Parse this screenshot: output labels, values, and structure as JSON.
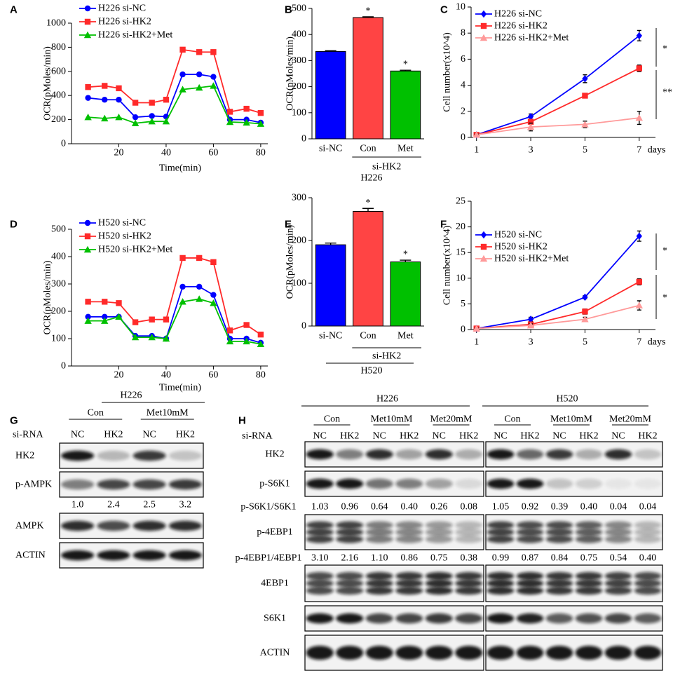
{
  "chart_data": [
    {
      "type": "line",
      "label": "A",
      "ylabel": "OCR(pMoles/min)",
      "xlabel": "Time(min)",
      "x": [
        7,
        14,
        20,
        27,
        34,
        40,
        47,
        54,
        60,
        67,
        74,
        80
      ],
      "xlim": [
        0,
        83
      ],
      "xticks": [
        20,
        40,
        60,
        80
      ],
      "ylim": [
        0,
        1000
      ],
      "yticks": [
        0,
        200,
        400,
        600,
        800,
        1000
      ],
      "legend": "upper left",
      "series": [
        {
          "name": "H226  si-NC",
          "color": "#0000ff",
          "marker": "circle",
          "values": [
            380,
            365,
            365,
            220,
            230,
            225,
            575,
            575,
            555,
            200,
            200,
            175
          ]
        },
        {
          "name": "H226  si-HK2",
          "color": "#ff2a2a",
          "marker": "square",
          "values": [
            470,
            480,
            460,
            340,
            340,
            365,
            780,
            760,
            760,
            265,
            290,
            255
          ]
        },
        {
          "name": "H226  si-HK2+Met",
          "color": "#00c000",
          "marker": "triangle",
          "values": [
            220,
            210,
            220,
            170,
            185,
            185,
            450,
            465,
            480,
            180,
            175,
            165
          ]
        }
      ]
    },
    {
      "type": "bar",
      "label": "B",
      "ylabel": "OCR(pMoles/min)",
      "categories": [
        "si-NC",
        "Con",
        "Met"
      ],
      "values": [
        335,
        465,
        260
      ],
      "errors": [
        3,
        3,
        3
      ],
      "colors": [
        "#0000ff",
        "#ff4444",
        "#00c000"
      ],
      "ylim": [
        0,
        500
      ],
      "yticks": [
        0,
        100,
        200,
        300,
        400,
        500
      ],
      "annotations": [
        "*",
        "*"
      ],
      "group_label": "si-HK2",
      "cell_line": "H226"
    },
    {
      "type": "line",
      "label": "C",
      "ylabel": "Cell number(x10^4)",
      "xlabel": "days",
      "x": [
        1,
        3,
        5,
        7
      ],
      "xlim": [
        0.8,
        7.6
      ],
      "xticks": [
        1,
        3,
        5,
        7
      ],
      "ylim": [
        0,
        10
      ],
      "yticks": [
        0,
        2,
        4,
        6,
        8,
        10
      ],
      "legend": "upper left",
      "annotations": [
        "*",
        "**"
      ],
      "series": [
        {
          "name": "H226  si-NC",
          "color": "#0000ff",
          "marker": "diamond",
          "values": [
            0.2,
            1.6,
            4.5,
            7.8
          ],
          "errors": [
            0.05,
            0.2,
            0.3,
            0.4
          ]
        },
        {
          "name": "H226  si-HK2",
          "color": "#ff2a2a",
          "marker": "square",
          "values": [
            0.2,
            1.2,
            3.2,
            5.3
          ],
          "errors": [
            0.05,
            0.15,
            0.15,
            0.25
          ]
        },
        {
          "name": "H226  si-HK2+Met",
          "color": "#ff9a9a",
          "marker": "triangle",
          "values": [
            0.2,
            0.8,
            1.0,
            1.5
          ],
          "errors": [
            0.05,
            0.3,
            0.25,
            0.5
          ]
        }
      ]
    },
    {
      "type": "line",
      "label": "D",
      "ylabel": "OCR(pMoles/min)",
      "xlabel": "Time(min)",
      "x": [
        7,
        14,
        20,
        27,
        34,
        40,
        47,
        54,
        60,
        67,
        74,
        80
      ],
      "xlim": [
        0,
        83
      ],
      "xticks": [
        20,
        40,
        60,
        80
      ],
      "ylim": [
        0,
        500
      ],
      "yticks": [
        0,
        100,
        200,
        300,
        400,
        500
      ],
      "legend": "upper left",
      "series": [
        {
          "name": "H520  si-NC",
          "color": "#0000ff",
          "marker": "circle",
          "values": [
            180,
            180,
            180,
            110,
            110,
            100,
            290,
            290,
            260,
            100,
            100,
            85
          ]
        },
        {
          "name": "H520  si-HK2",
          "color": "#ff2a2a",
          "marker": "square",
          "values": [
            235,
            235,
            230,
            160,
            170,
            170,
            395,
            395,
            380,
            130,
            150,
            115
          ]
        },
        {
          "name": "H520  si-HK2+Met",
          "color": "#00c000",
          "marker": "triangle",
          "values": [
            165,
            165,
            180,
            105,
            105,
            100,
            235,
            245,
            230,
            90,
            90,
            80
          ]
        }
      ]
    },
    {
      "type": "bar",
      "label": "E",
      "ylabel": "OCR(pMoles/min)",
      "categories": [
        "si-NC",
        "Con",
        "Met"
      ],
      "values": [
        190,
        268,
        150
      ],
      "errors": [
        4,
        7,
        4
      ],
      "colors": [
        "#0000ff",
        "#ff4444",
        "#00c000"
      ],
      "ylim": [
        0,
        300
      ],
      "yticks": [
        0,
        100,
        200,
        300
      ],
      "annotations": [
        "*",
        "*"
      ],
      "group_label": "si-HK2",
      "cell_line": "H520"
    },
    {
      "type": "line",
      "label": "F",
      "ylabel": "Cell number(x10^4)",
      "xlabel": "days",
      "x": [
        1,
        3,
        5,
        7
      ],
      "xlim": [
        0.8,
        7.6
      ],
      "xticks": [
        1,
        3,
        5,
        7
      ],
      "ylim": [
        0,
        25
      ],
      "yticks": [
        0,
        5,
        10,
        15,
        20,
        25
      ],
      "legend": "upper left",
      "annotations": [
        "*",
        "*"
      ],
      "series": [
        {
          "name": "H520  si-NC",
          "color": "#0000ff",
          "marker": "diamond",
          "values": [
            0.2,
            2.0,
            6.3,
            18.2
          ],
          "errors": [
            0.1,
            0.4,
            0.3,
            1.0
          ]
        },
        {
          "name": "H520  si-HK2",
          "color": "#ff2a2a",
          "marker": "square",
          "values": [
            0.2,
            1.0,
            3.5,
            9.3
          ],
          "errors": [
            0.1,
            0.3,
            0.5,
            0.6
          ]
        },
        {
          "name": "H520  si-HK2+Met",
          "color": "#ff9a9a",
          "marker": "triangle",
          "values": [
            0.2,
            0.8,
            2.0,
            4.7
          ],
          "errors": [
            0.1,
            0.3,
            0.4,
            0.9
          ]
        }
      ]
    }
  ],
  "blots": {
    "G": {
      "label": "G",
      "cell_line": "H226",
      "conditions": [
        "Con",
        "Met10mM"
      ],
      "si_rna_label": "si-RNA",
      "lanes": [
        "NC",
        "HK2",
        "NC",
        "HK2"
      ],
      "rows": [
        "HK2",
        "p-AMPK",
        "AMPK",
        "ACTIN"
      ],
      "ratios": [
        "1.0",
        "2.4",
        "2.5",
        "3.2"
      ]
    },
    "H": {
      "label": "H",
      "cell_lines": [
        "H226",
        "H520"
      ],
      "conditions": [
        "Con",
        "Met10mM",
        "Met20mM"
      ],
      "si_rna_label": "si-RNA",
      "lanes": [
        "NC",
        "HK2",
        "NC",
        "HK2",
        "NC",
        "HK2"
      ],
      "rows": [
        "HK2",
        "p-S6K1",
        "p-4EBP1",
        "4EBP1",
        "S6K1",
        "ACTIN"
      ],
      "ratios": [
        {
          "label": "p-S6K1/S6K1",
          "values": [
            [
              "1.03",
              "0.96",
              "0.64",
              "0.40",
              "0.26",
              "0.08"
            ],
            [
              "1.05",
              "0.92",
              "0.39",
              "0.40",
              "0.04",
              "0.04"
            ]
          ]
        },
        {
          "label": "p-4EBP1/4EBP1",
          "values": [
            [
              "3.10",
              "2.16",
              "1.10",
              "0.86",
              "0.75",
              "0.38"
            ],
            [
              "0.99",
              "0.87",
              "0.84",
              "0.75",
              "0.54",
              "0.40"
            ]
          ]
        }
      ]
    }
  }
}
